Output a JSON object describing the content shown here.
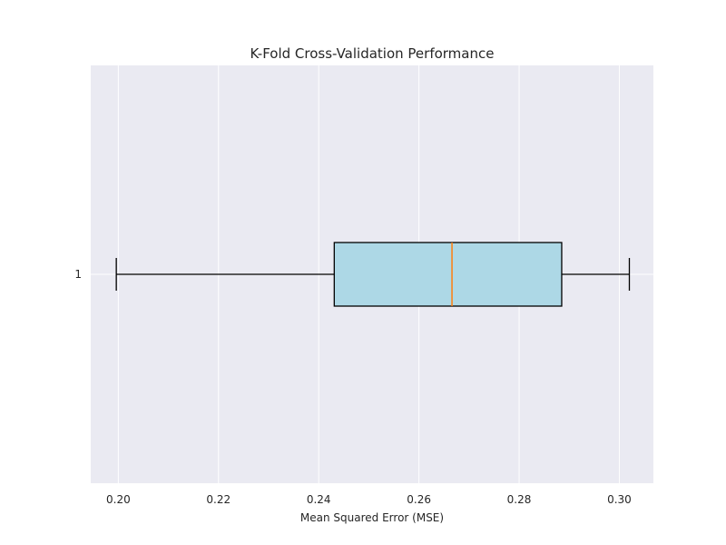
{
  "chart_data": {
    "type": "boxplot",
    "orientation": "horizontal",
    "title": "K-Fold Cross-Validation Performance",
    "xlabel": "Mean Squared Error (MSE)",
    "ylabel": "",
    "xlim": [
      0.1945,
      0.3068
    ],
    "xticks": [
      0.2,
      0.22,
      0.24,
      0.26,
      0.28,
      0.3
    ],
    "xtick_labels": [
      "0.20",
      "0.22",
      "0.24",
      "0.26",
      "0.28",
      "0.30"
    ],
    "categories": [
      "1"
    ],
    "boxes": [
      {
        "label": "1",
        "whisker_low": 0.1996,
        "q1": 0.2431,
        "median": 0.2666,
        "q3": 0.2885,
        "whisker_high": 0.302
      }
    ],
    "grid": true,
    "colors": {
      "plot_background": "#eaeaf2",
      "grid": "#ffffff",
      "box_fill": "#add8e6",
      "box_edge": "#000000",
      "median": "#ff7f0e"
    }
  }
}
